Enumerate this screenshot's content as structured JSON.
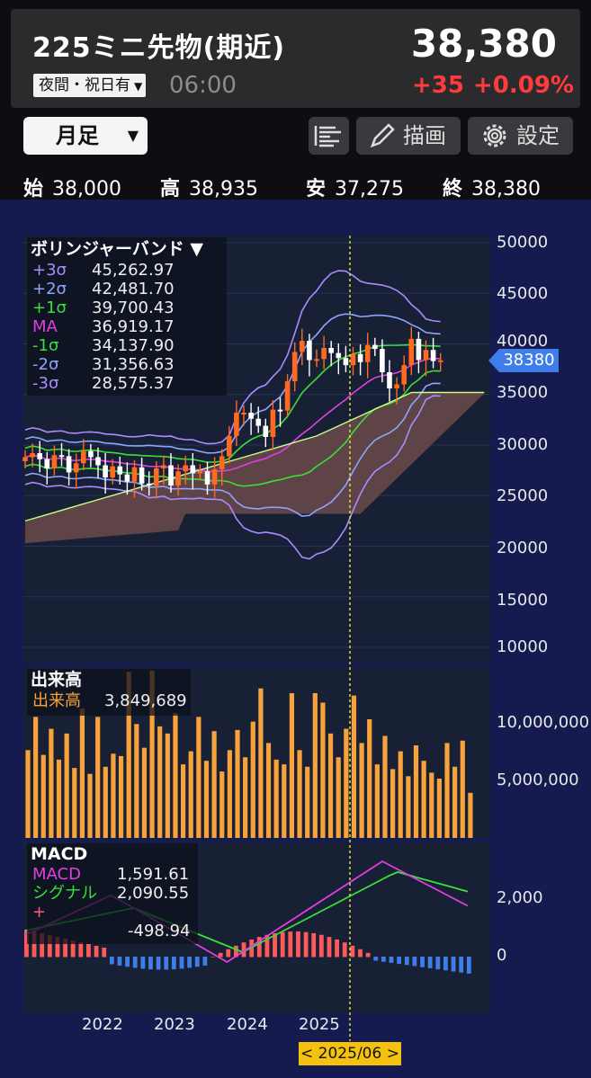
{
  "header": {
    "title": "225ミニ先物(期近)",
    "price": "38,380",
    "session": "夜間・祝日有",
    "time": "06:00",
    "change": "+35",
    "change_pct": "+0.09%"
  },
  "toolbar": {
    "period": "月足",
    "draw": "描画",
    "settings": "設定"
  },
  "ohlc": {
    "open_label": "始",
    "open": "38,000",
    "high_label": "高",
    "high": "38,935",
    "low_label": "安",
    "low": "37,275",
    "close_label": "終",
    "close": "38,380"
  },
  "bollinger": {
    "title": "ボリンジャーバンド ▼",
    "rows": [
      {
        "label": "+3σ",
        "value": "45,262.97",
        "color": "#a98cff"
      },
      {
        "label": "+2σ",
        "value": "42,481.70",
        "color": "#8fa4ff"
      },
      {
        "label": "+1σ",
        "value": "39,700.43",
        "color": "#38e038"
      },
      {
        "label": "MA",
        "value": "36,919.17",
        "color": "#e040e0"
      },
      {
        "label": "-1σ",
        "value": "34,137.90",
        "color": "#38e038"
      },
      {
        "label": "-2σ",
        "value": "31,356.63",
        "color": "#8fa4ff"
      },
      {
        "label": "-3σ",
        "value": "28,575.37",
        "color": "#a98cff"
      }
    ]
  },
  "price_axis": [
    "50000",
    "45000",
    "40000",
    "35000",
    "30000",
    "25000",
    "20000",
    "15000",
    "10000"
  ],
  "current_price_tag": "38380",
  "volume": {
    "title": "出来高",
    "label": "出来高",
    "value": "3,849,689",
    "axis": [
      "10,000,000",
      "5,000,000"
    ]
  },
  "macd": {
    "title": "MACD",
    "rows": [
      {
        "label": "MACD",
        "value": "1,591.61",
        "color": "#e040e0"
      },
      {
        "label": "シグナル",
        "value": "2,090.55",
        "color": "#38e038"
      },
      {
        "label": "+",
        "value": "",
        "color": "#ff5a7a"
      },
      {
        "label": "",
        "value": "-498.94",
        "color": "#ffffff"
      }
    ],
    "axis": [
      "2,000",
      "0"
    ]
  },
  "x_axis": [
    "2022",
    "2023",
    "2024",
    "2025"
  ],
  "cursor_date": "< 2025/06 >",
  "colors": {
    "up": "#ff6a20",
    "down": "#ffffff",
    "volume": "#f7a23a",
    "hist_pos": "#ff5a5a",
    "hist_neg": "#3f7de8",
    "cloud": "#6b4a4a",
    "cursor": "#e6e64a"
  }
}
